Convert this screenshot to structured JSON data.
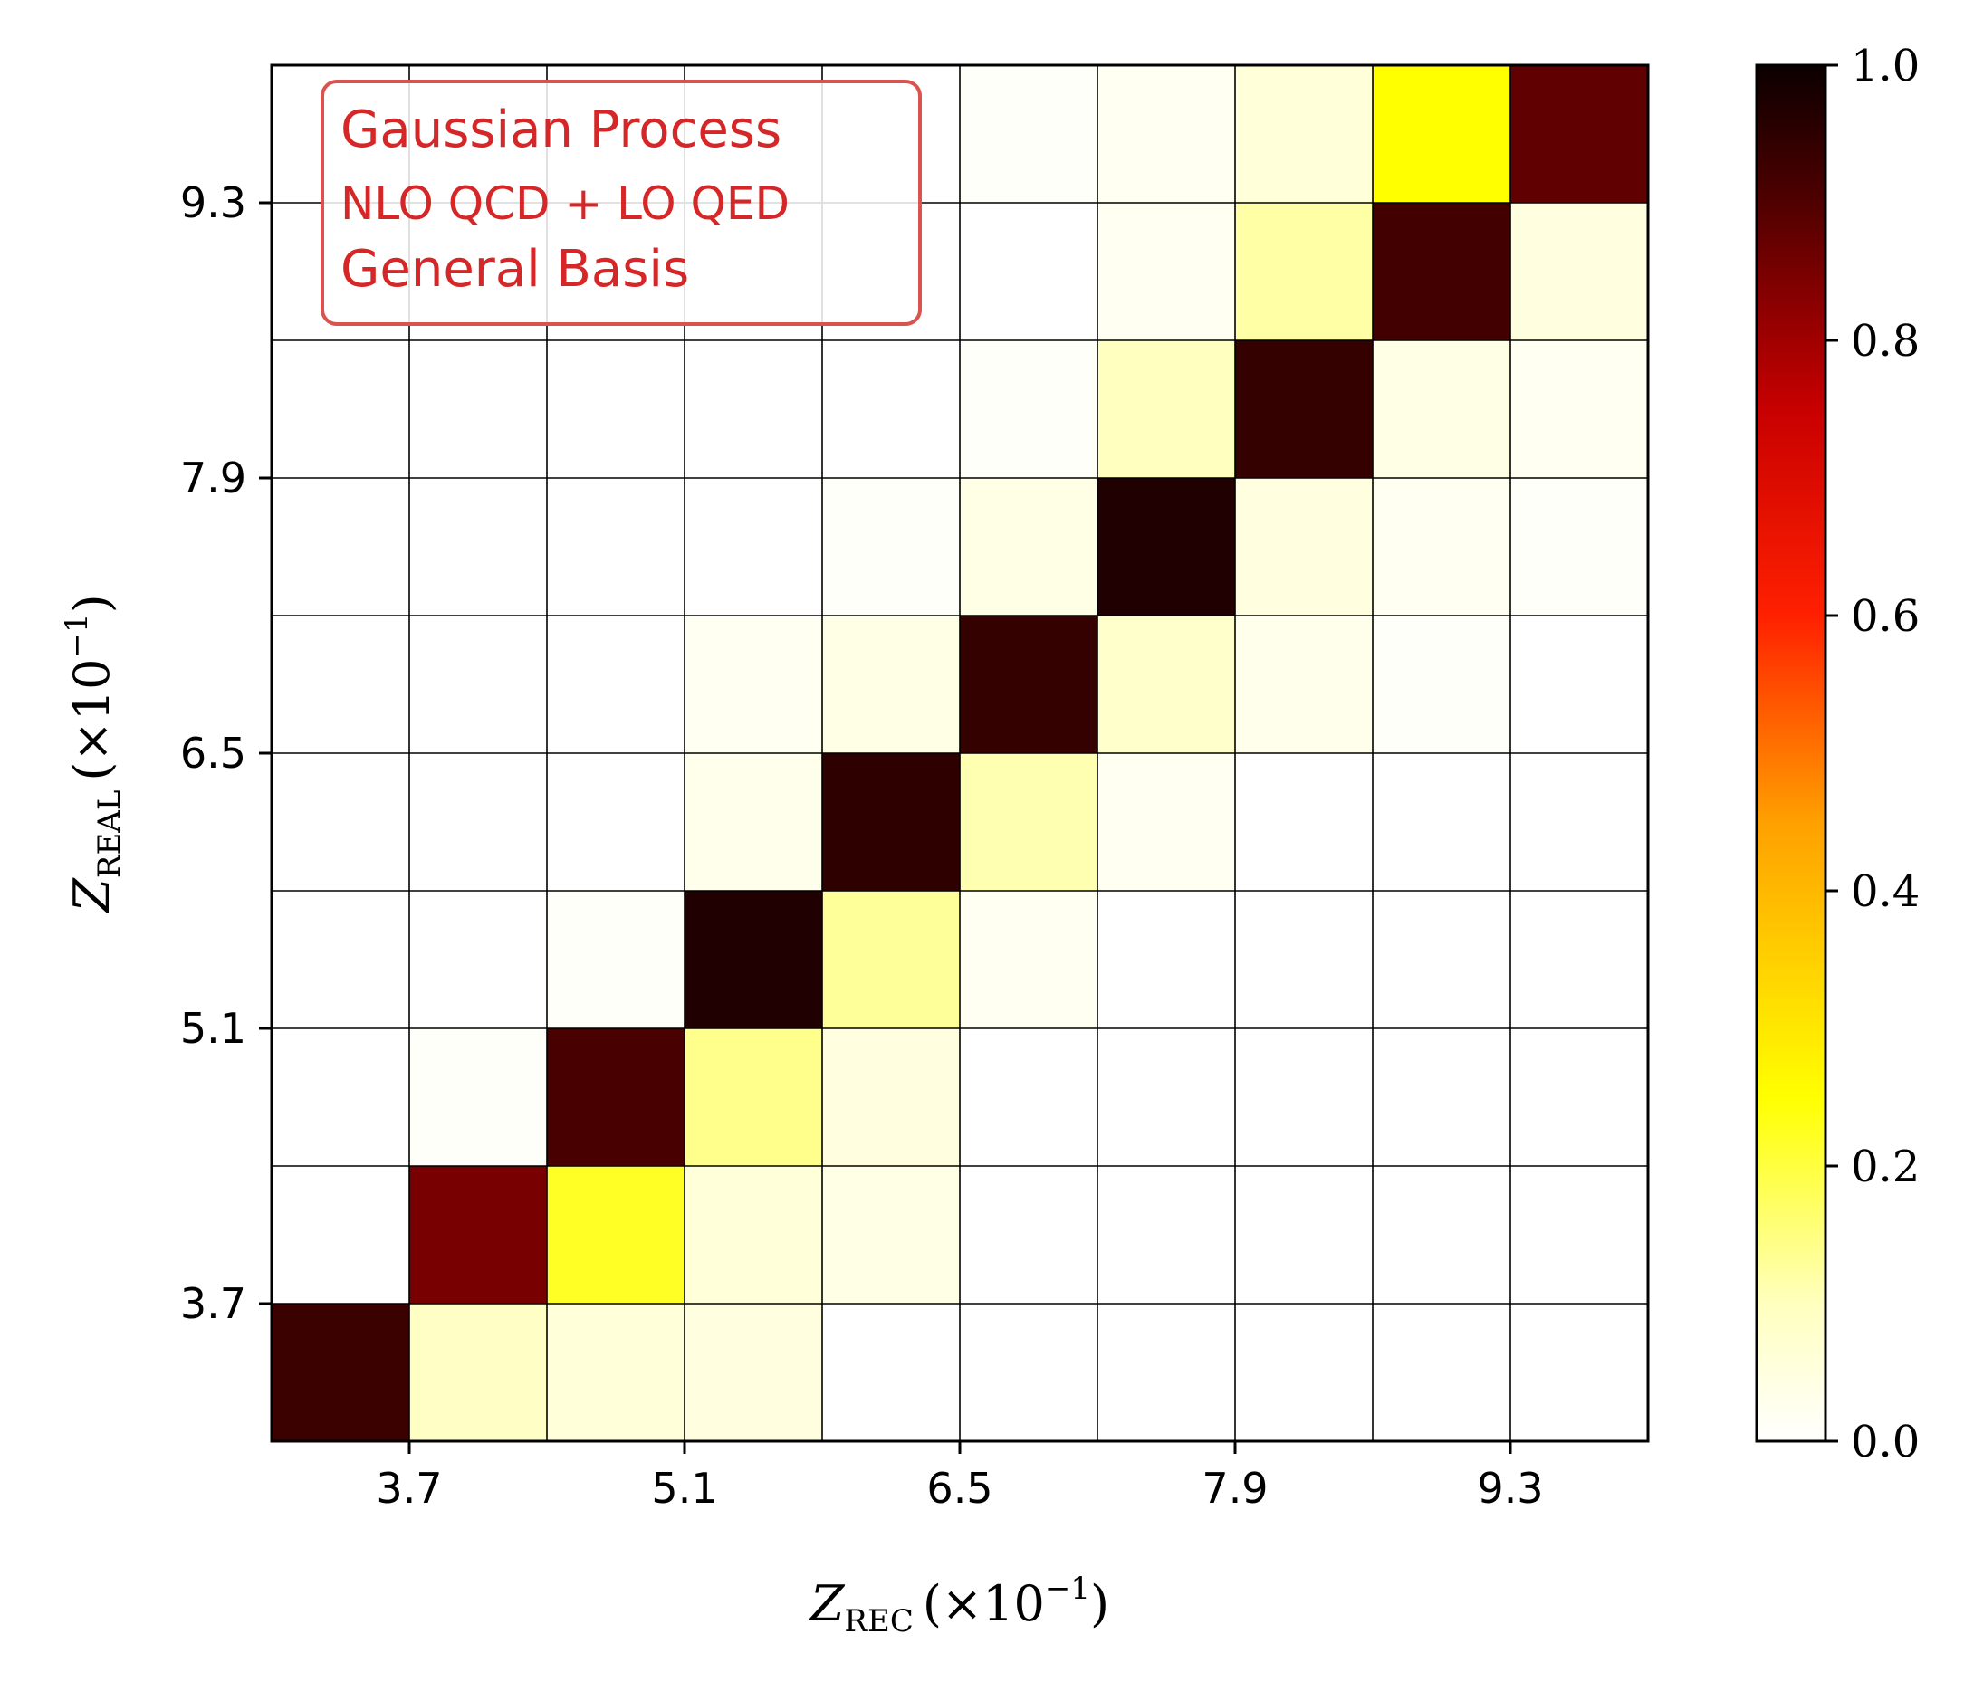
{
  "chart_data": {
    "type": "heatmap",
    "x_tick_labels": [
      "3.7",
      "5.1",
      "6.5",
      "7.9",
      "9.3"
    ],
    "y_tick_labels": [
      "3.7",
      "5.1",
      "6.5",
      "7.9",
      "9.3"
    ],
    "xlabel": {
      "symbol": "Z",
      "subscript": "REC",
      "factor": "(×10",
      "exponent": "−1",
      "close": ")"
    },
    "ylabel": {
      "symbol": "Z",
      "subscript": "REAL",
      "factor": "(×10",
      "exponent": "−1",
      "close": ")"
    },
    "colorbar": {
      "min": 0.0,
      "max": 1.0,
      "tick_values": [
        0.0,
        0.2,
        0.4,
        0.6,
        0.8,
        1.0
      ],
      "tick_labels": [
        "0.0",
        "0.2",
        "0.4",
        "0.6",
        "0.8",
        "1.0"
      ],
      "colormap": "hot_r"
    },
    "grid": true,
    "matrix_rows_top_to_bottom": [
      [
        0,
        0,
        0,
        0,
        0,
        0.01,
        0.02,
        0.06,
        0.25,
        0.88
      ],
      [
        0,
        0,
        0,
        0,
        0,
        0,
        0.02,
        0.12,
        0.92,
        0.05
      ],
      [
        0,
        0,
        0,
        0,
        0,
        0.01,
        0.1,
        0.94,
        0.04,
        0.02
      ],
      [
        0,
        0,
        0,
        0,
        0.01,
        0.04,
        0.97,
        0.05,
        0.02,
        0.01
      ],
      [
        0,
        0,
        0,
        0.02,
        0.04,
        0.94,
        0.08,
        0.03,
        0.01,
        0
      ],
      [
        0,
        0,
        0,
        0.03,
        0.95,
        0.11,
        0.02,
        0,
        0,
        0
      ],
      [
        0,
        0,
        0.01,
        0.97,
        0.13,
        0.02,
        0,
        0,
        0,
        0
      ],
      [
        0,
        0.01,
        0.91,
        0.14,
        0.05,
        0,
        0,
        0,
        0,
        0
      ],
      [
        0,
        0.85,
        0.22,
        0.06,
        0.04,
        0,
        0,
        0,
        0,
        0
      ],
      [
        0.93,
        0.09,
        0.06,
        0.05,
        0,
        0,
        0,
        0,
        0,
        0
      ]
    ]
  },
  "legend": {
    "line1": "Gaussian Process",
    "line2": "NLO QCD + LO QED",
    "line3": "General Basis",
    "color": "#d62728"
  }
}
